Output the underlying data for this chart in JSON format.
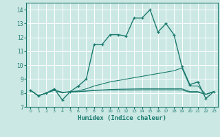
{
  "xlabel": "Humidex (Indice chaleur)",
  "background_color": "#cce8e4",
  "grid_color": "#ffffff",
  "line_color": "#1a7a6e",
  "x_values": [
    0,
    1,
    2,
    3,
    4,
    5,
    6,
    7,
    8,
    9,
    10,
    11,
    12,
    13,
    14,
    15,
    16,
    17,
    18,
    19,
    20,
    21,
    22,
    23
  ],
  "series": [
    [
      8.2,
      7.8,
      8.0,
      8.3,
      7.5,
      8.1,
      8.5,
      9.0,
      11.5,
      11.5,
      12.2,
      12.2,
      12.1,
      13.4,
      13.4,
      14.0,
      12.4,
      13.0,
      12.2,
      9.9,
      8.6,
      8.8,
      7.6,
      8.1
    ],
    [
      8.2,
      7.8,
      8.0,
      8.2,
      8.0,
      8.1,
      8.15,
      8.3,
      8.5,
      8.65,
      8.8,
      8.9,
      9.0,
      9.1,
      9.2,
      9.3,
      9.4,
      9.5,
      9.6,
      9.8,
      8.5,
      8.5,
      7.9,
      8.1
    ],
    [
      8.2,
      7.8,
      8.0,
      8.2,
      8.05,
      8.08,
      8.1,
      8.15,
      8.2,
      8.22,
      8.25,
      8.27,
      8.28,
      8.29,
      8.3,
      8.3,
      8.3,
      8.3,
      8.3,
      8.3,
      8.1,
      8.1,
      7.9,
      8.1
    ],
    [
      8.2,
      7.8,
      8.0,
      8.2,
      8.05,
      8.08,
      8.1,
      8.13,
      8.18,
      8.2,
      8.22,
      8.22,
      8.22,
      8.22,
      8.23,
      8.23,
      8.23,
      8.23,
      8.23,
      8.22,
      8.05,
      8.05,
      7.9,
      8.1
    ]
  ],
  "ylim": [
    7.0,
    14.5
  ],
  "xlim": [
    -0.5,
    23.5
  ],
  "yticks": [
    7,
    8,
    9,
    10,
    11,
    12,
    13,
    14
  ],
  "xticks": [
    0,
    1,
    2,
    3,
    4,
    5,
    6,
    7,
    8,
    9,
    10,
    11,
    12,
    13,
    14,
    15,
    16,
    17,
    18,
    19,
    20,
    21,
    22,
    23
  ]
}
